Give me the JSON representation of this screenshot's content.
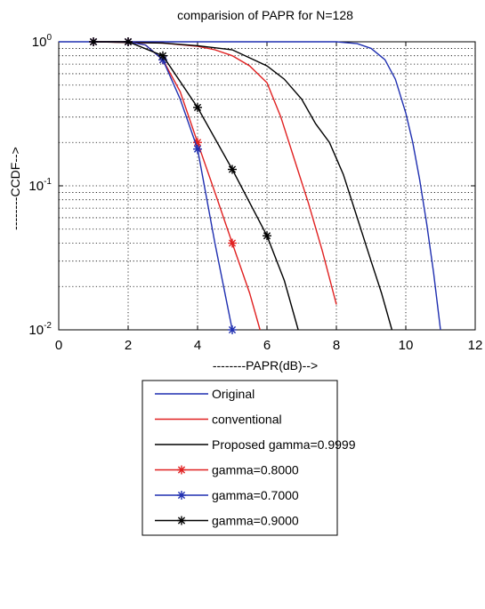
{
  "chart_data": {
    "type": "line",
    "title": "comparision of PAPR for N=128",
    "xlabel": "--------PAPR(dB)-->",
    "ylabel": "--------CCDF-->",
    "x_scale": "linear",
    "y_scale": "log",
    "xlim": [
      0,
      12
    ],
    "ylim": [
      0.01,
      1
    ],
    "xticks": [
      0,
      2,
      4,
      6,
      8,
      10,
      12
    ],
    "yticks": [
      {
        "base": "10",
        "exp": "0",
        "value": 1
      },
      {
        "base": "10",
        "exp": "-1",
        "value": 0.1
      },
      {
        "base": "10",
        "exp": "-2",
        "value": 0.01
      }
    ],
    "grid": true,
    "legend_position": "bottom-center",
    "series": [
      {
        "name": "Original",
        "color": "#1f2fb0",
        "marker": "none",
        "x": [
          0,
          6,
          8,
          8.6,
          9,
          9.4,
          9.7,
          10.0,
          10.2,
          10.4,
          10.6,
          10.8,
          11.0
        ],
        "y": [
          1,
          1,
          1,
          0.97,
          0.9,
          0.75,
          0.55,
          0.32,
          0.2,
          0.11,
          0.055,
          0.025,
          0.01
        ]
      },
      {
        "name": "conventional",
        "color": "#e02020",
        "marker": "none",
        "x": [
          1,
          3,
          4,
          4.5,
          5,
          5.5,
          6,
          6.4,
          6.8,
          7.2,
          7.6,
          8.0
        ],
        "y": [
          1,
          0.98,
          0.93,
          0.88,
          0.8,
          0.68,
          0.52,
          0.3,
          0.15,
          0.075,
          0.035,
          0.015
        ]
      },
      {
        "name": "Proposed gamma=0.9999",
        "color": "#000000",
        "marker": "none",
        "x": [
          1,
          3,
          4,
          5,
          6,
          6.5,
          7,
          7.4,
          7.8,
          8.2,
          8.6,
          9.0,
          9.3,
          9.6
        ],
        "y": [
          1,
          0.98,
          0.94,
          0.88,
          0.68,
          0.55,
          0.4,
          0.27,
          0.2,
          0.12,
          0.06,
          0.03,
          0.018,
          0.01
        ]
      },
      {
        "name": "gamma=0.8000",
        "color": "#e02020",
        "marker": "star",
        "x": [
          1,
          2,
          2.5,
          3,
          3.5,
          4,
          4.5,
          5,
          5.5,
          5.8
        ],
        "y": [
          1,
          1,
          0.95,
          0.75,
          0.45,
          0.2,
          0.09,
          0.04,
          0.018,
          0.01
        ]
      },
      {
        "name": "gamma=0.7000",
        "color": "#1f2fb0",
        "marker": "star",
        "x": [
          1,
          2,
          2.5,
          3,
          3.5,
          4,
          4.5,
          5
        ],
        "y": [
          1,
          1,
          0.95,
          0.75,
          0.4,
          0.18,
          0.04,
          0.01
        ]
      },
      {
        "name": "gamma=0.9000",
        "color": "#000000",
        "marker": "star",
        "x": [
          1,
          2,
          3,
          4,
          5,
          6,
          6.5,
          6.9
        ],
        "y": [
          1,
          1,
          0.8,
          0.35,
          0.13,
          0.045,
          0.022,
          0.01
        ]
      }
    ]
  }
}
